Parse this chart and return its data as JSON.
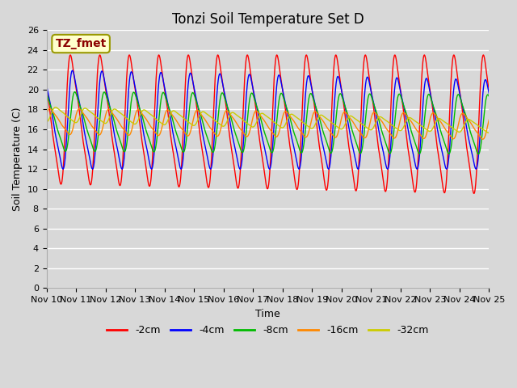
{
  "title": "Tonzi Soil Temperature Set D",
  "xlabel": "Time",
  "ylabel": "Soil Temperature (C)",
  "ylim": [
    0,
    26
  ],
  "yticks": [
    0,
    2,
    4,
    6,
    8,
    10,
    12,
    14,
    16,
    18,
    20,
    22,
    24,
    26
  ],
  "xtick_labels": [
    "Nov 10",
    "Nov 11",
    "Nov 12",
    "Nov 13",
    "Nov 14",
    "Nov 15",
    "Nov 16",
    "Nov 17",
    "Nov 18",
    "Nov 19",
    "Nov 20",
    "Nov 21",
    "Nov 22",
    "Nov 23",
    "Nov 24",
    "Nov 25"
  ],
  "annotation_text": "TZ_fmet",
  "annotation_color": "#8B0000",
  "annotation_bg": "#FFFFCC",
  "annotation_border": "#999900",
  "background_color": "#D8D8D8",
  "plot_bg_color": "#D8D8D8",
  "grid_color": "#FFFFFF",
  "title_fontsize": 12,
  "label_fontsize": 9,
  "tick_fontsize": 8,
  "legend_fontsize": 9,
  "series_colors": [
    "#FF0000",
    "#0000FF",
    "#00BB00",
    "#FF8800",
    "#CCCC00"
  ],
  "series_labels": [
    "-2cm",
    "-4cm",
    "-8cm",
    "-16cm",
    "-32cm"
  ]
}
